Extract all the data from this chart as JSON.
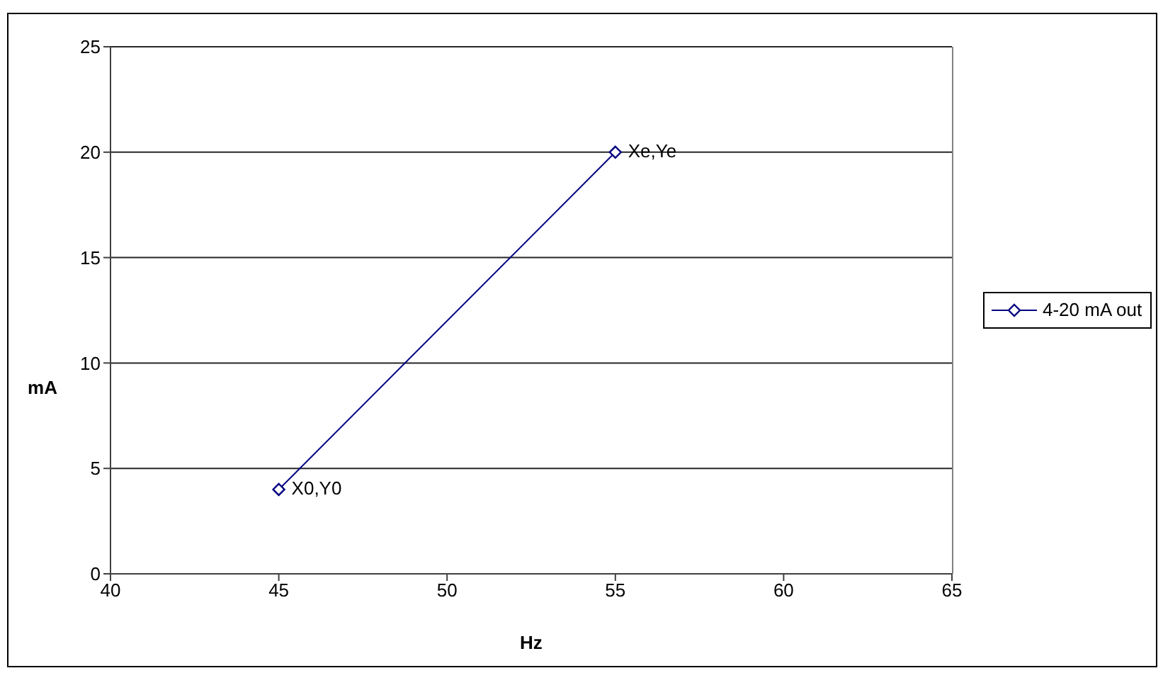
{
  "chart_data": {
    "type": "line",
    "xlabel": "Hz",
    "ylabel": "mA",
    "x": [
      45,
      55
    ],
    "series": [
      {
        "name": "4-20 mA out",
        "color": "#000080",
        "values": [
          4,
          20
        ]
      }
    ],
    "xlim": [
      40,
      65
    ],
    "xticks": [
      40,
      45,
      50,
      55,
      60,
      65
    ],
    "ylim": [
      0,
      25
    ],
    "yticks": [
      0,
      5,
      10,
      15,
      20,
      25
    ],
    "grid": "y",
    "legend": "right",
    "marker": "diamond",
    "line_style": "solid",
    "annotations": [
      {
        "text": "X0,Y0",
        "x": 45,
        "y": 4
      },
      {
        "text": "Xe,Ye",
        "x": 55,
        "y": 20
      }
    ]
  }
}
